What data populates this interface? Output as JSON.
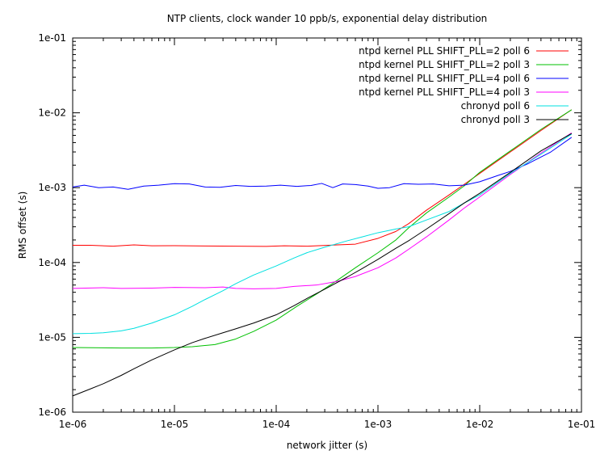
{
  "chart_data": {
    "type": "line",
    "title": "NTP clients, clock wander 10 ppb/s, exponential delay distribution",
    "xlabel": "network jitter (s)",
    "ylabel": "RMS offset (s)",
    "x_scale": "log",
    "y_scale": "log",
    "xlim": [
      1e-06,
      0.1
    ],
    "ylim": [
      1e-06,
      0.1
    ],
    "x_ticks": [
      {
        "value": 1e-06,
        "label": "1e-06"
      },
      {
        "value": 1e-05,
        "label": "1e-05"
      },
      {
        "value": 0.0001,
        "label": "1e-04"
      },
      {
        "value": 0.001,
        "label": "1e-03"
      },
      {
        "value": 0.01,
        "label": "1e-02"
      },
      {
        "value": 0.1,
        "label": "1e-01"
      }
    ],
    "y_ticks": [
      {
        "value": 1e-06,
        "label": "1e-06"
      },
      {
        "value": 1e-05,
        "label": "1e-05"
      },
      {
        "value": 0.0001,
        "label": "1e-04"
      },
      {
        "value": 0.001,
        "label": "1e-03"
      },
      {
        "value": 0.01,
        "label": "1e-02"
      },
      {
        "value": 0.1,
        "label": "1e-01"
      }
    ],
    "grid": false,
    "legend_position": "top-right",
    "series": [
      {
        "name": "ntpd kernel PLL SHIFT_PLL=2 poll 6",
        "color": "#ff0000",
        "points": [
          [
            1e-06,
            0.00017
          ],
          [
            1.5e-06,
            0.00017
          ],
          [
            2.5e-06,
            0.000165
          ],
          [
            4e-06,
            0.000172
          ],
          [
            6e-06,
            0.000167
          ],
          [
            1e-05,
            0.000168
          ],
          [
            2e-05,
            0.000166
          ],
          [
            4e-05,
            0.000165
          ],
          [
            8e-05,
            0.000164
          ],
          [
            0.00012,
            0.000167
          ],
          [
            0.0002,
            0.000165
          ],
          [
            0.0004,
            0.000172
          ],
          [
            0.0006,
            0.000176
          ],
          [
            0.001,
            0.00021
          ],
          [
            0.0015,
            0.00026
          ],
          [
            0.002,
            0.00033
          ],
          [
            0.003,
            0.0005
          ],
          [
            0.005,
            0.0008
          ],
          [
            0.007,
            0.0011
          ],
          [
            0.01,
            0.00155
          ],
          [
            0.02,
            0.003
          ],
          [
            0.04,
            0.0058
          ],
          [
            0.08,
            0.011
          ]
        ]
      },
      {
        "name": "ntpd kernel PLL SHIFT_PLL=2 poll 3",
        "color": "#00c000",
        "points": [
          [
            1e-06,
            7.3e-06
          ],
          [
            3e-06,
            7.2e-06
          ],
          [
            6e-06,
            7.2e-06
          ],
          [
            1e-05,
            7.3e-06
          ],
          [
            1.5e-05,
            7.5e-06
          ],
          [
            2.5e-05,
            8e-06
          ],
          [
            4e-05,
            9.5e-06
          ],
          [
            6e-05,
            1.2e-05
          ],
          [
            0.0001,
            1.7e-05
          ],
          [
            0.00016,
            2.6e-05
          ],
          [
            0.00025,
            3.8e-05
          ],
          [
            0.0004,
            5.8e-05
          ],
          [
            0.0006,
            8.5e-05
          ],
          [
            0.001,
            0.000135
          ],
          [
            0.0015,
            0.0002
          ],
          [
            0.002,
            0.00029
          ],
          [
            0.003,
            0.00046
          ],
          [
            0.005,
            0.00075
          ],
          [
            0.007,
            0.00105
          ],
          [
            0.01,
            0.0016
          ],
          [
            0.02,
            0.0031
          ],
          [
            0.04,
            0.006
          ],
          [
            0.08,
            0.011
          ]
        ]
      },
      {
        "name": "ntpd kernel PLL SHIFT_PLL=4 poll 6",
        "color": "#0000ff",
        "points": [
          [
            1e-06,
            0.00102
          ],
          [
            1.3e-06,
            0.00108
          ],
          [
            1.8e-06,
            0.001
          ],
          [
            2.5e-06,
            0.00102
          ],
          [
            3.5e-06,
            0.00095
          ],
          [
            5e-06,
            0.00105
          ],
          [
            7e-06,
            0.00108
          ],
          [
            1e-05,
            0.00113
          ],
          [
            1.4e-05,
            0.00112
          ],
          [
            2e-05,
            0.00102
          ],
          [
            2.8e-05,
            0.00101
          ],
          [
            4e-05,
            0.00107
          ],
          [
            5.6e-05,
            0.00104
          ],
          [
            8e-05,
            0.00105
          ],
          [
            0.00011,
            0.00108
          ],
          [
            0.00016,
            0.00104
          ],
          [
            0.00022,
            0.00107
          ],
          [
            0.00028,
            0.00114
          ],
          [
            0.00036,
            0.001
          ],
          [
            0.00045,
            0.00112
          ],
          [
            0.0006,
            0.0011
          ],
          [
            0.0008,
            0.00105
          ],
          [
            0.001,
            0.00098
          ],
          [
            0.0013,
            0.001
          ],
          [
            0.0018,
            0.00113
          ],
          [
            0.0025,
            0.00111
          ],
          [
            0.0035,
            0.00112
          ],
          [
            0.005,
            0.00106
          ],
          [
            0.007,
            0.00108
          ],
          [
            0.01,
            0.0012
          ],
          [
            0.015,
            0.00145
          ],
          [
            0.02,
            0.00165
          ],
          [
            0.03,
            0.0021
          ],
          [
            0.05,
            0.003
          ],
          [
            0.08,
            0.0047
          ]
        ]
      },
      {
        "name": "ntpd kernel PLL SHIFT_PLL=4 poll 3",
        "color": "#ff00ff",
        "points": [
          [
            1e-06,
            4.5e-05
          ],
          [
            2e-06,
            4.6e-05
          ],
          [
            3e-06,
            4.5e-05
          ],
          [
            6e-06,
            4.55e-05
          ],
          [
            1e-05,
            4.65e-05
          ],
          [
            2e-05,
            4.6e-05
          ],
          [
            3e-05,
            4.7e-05
          ],
          [
            4e-05,
            4.5e-05
          ],
          [
            6e-05,
            4.45e-05
          ],
          [
            0.0001,
            4.5e-05
          ],
          [
            0.00015,
            4.8e-05
          ],
          [
            0.00025,
            5e-05
          ],
          [
            0.0004,
            5.6e-05
          ],
          [
            0.0006,
            6.5e-05
          ],
          [
            0.001,
            8.5e-05
          ],
          [
            0.0015,
            0.000115
          ],
          [
            0.002,
            0.00015
          ],
          [
            0.003,
            0.00022
          ],
          [
            0.005,
            0.00037
          ],
          [
            0.007,
            0.00053
          ],
          [
            0.01,
            0.00075
          ],
          [
            0.02,
            0.0015
          ],
          [
            0.04,
            0.0029
          ],
          [
            0.08,
            0.0054
          ]
        ]
      },
      {
        "name": "chronyd poll 6",
        "color": "#00e0e0",
        "points": [
          [
            1e-06,
            1.12e-05
          ],
          [
            1.5e-06,
            1.13e-05
          ],
          [
            2e-06,
            1.15e-05
          ],
          [
            3e-06,
            1.22e-05
          ],
          [
            4e-06,
            1.32e-05
          ],
          [
            6e-06,
            1.55e-05
          ],
          [
            1e-05,
            2e-05
          ],
          [
            1.5e-05,
            2.6e-05
          ],
          [
            2e-05,
            3.2e-05
          ],
          [
            3e-05,
            4.2e-05
          ],
          [
            4e-05,
            5.2e-05
          ],
          [
            6e-05,
            6.8e-05
          ],
          [
            0.0001,
            9e-05
          ],
          [
            0.00015,
            0.000115
          ],
          [
            0.0002,
            0.000135
          ],
          [
            0.0003,
            0.00016
          ],
          [
            0.0005,
            0.000195
          ],
          [
            0.0007,
            0.00022
          ],
          [
            0.001,
            0.00025
          ],
          [
            0.0015,
            0.00028
          ],
          [
            0.002,
            0.0003
          ],
          [
            0.003,
            0.00037
          ],
          [
            0.005,
            0.00048
          ],
          [
            0.007,
            0.00062
          ],
          [
            0.01,
            0.0008
          ],
          [
            0.02,
            0.00155
          ],
          [
            0.04,
            0.0028
          ],
          [
            0.08,
            0.0052
          ]
        ]
      },
      {
        "name": "chronyd poll 3",
        "color": "#000000",
        "points": [
          [
            1e-06,
            1.65e-06
          ],
          [
            1.5e-06,
            2.05e-06
          ],
          [
            2e-06,
            2.4e-06
          ],
          [
            3e-06,
            3.1e-06
          ],
          [
            4e-06,
            3.8e-06
          ],
          [
            6e-06,
            5e-06
          ],
          [
            1e-05,
            6.8e-06
          ],
          [
            1.5e-05,
            8.5e-06
          ],
          [
            2e-05,
            9.7e-06
          ],
          [
            3e-05,
            1.15e-05
          ],
          [
            4e-05,
            1.3e-05
          ],
          [
            6e-05,
            1.55e-05
          ],
          [
            0.0001,
            2e-05
          ],
          [
            0.00015,
            2.65e-05
          ],
          [
            0.0002,
            3.3e-05
          ],
          [
            0.0003,
            4.4e-05
          ],
          [
            0.0005,
            6.4e-05
          ],
          [
            0.0007,
            8.3e-05
          ],
          [
            0.001,
            0.00011
          ],
          [
            0.0015,
            0.000155
          ],
          [
            0.002,
            0.000195
          ],
          [
            0.003,
            0.00028
          ],
          [
            0.005,
            0.00045
          ],
          [
            0.007,
            0.00062
          ],
          [
            0.01,
            0.00084
          ],
          [
            0.02,
            0.0016
          ],
          [
            0.04,
            0.0031
          ],
          [
            0.08,
            0.0053
          ]
        ]
      }
    ]
  }
}
